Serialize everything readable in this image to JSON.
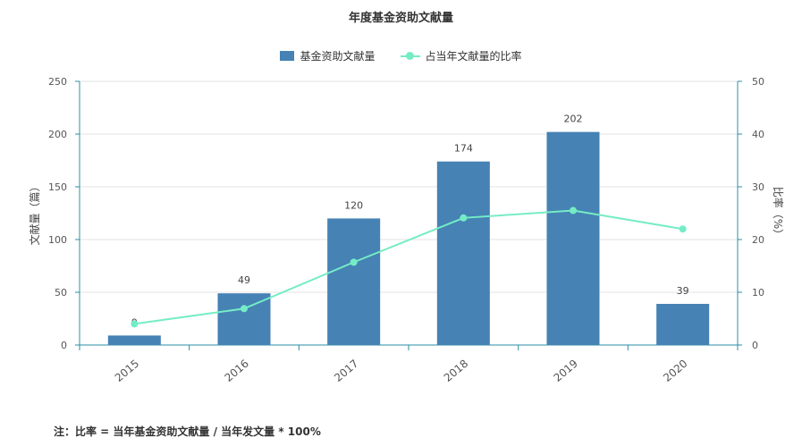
{
  "chart_data": {
    "type": "bar",
    "title": "年度基金资助文献量",
    "categories": [
      "2015",
      "2016",
      "2017",
      "2018",
      "2019",
      "2020"
    ],
    "series": [
      {
        "name": "基金资助文献量",
        "type": "bar",
        "axis": "left",
        "values": [
          9,
          49,
          120,
          174,
          202,
          39
        ]
      },
      {
        "name": "占当年文献量的比率",
        "type": "line",
        "axis": "right",
        "values": [
          4.0,
          6.9,
          15.7,
          24.1,
          25.5,
          22.0
        ]
      }
    ],
    "ylabel": "文献量（篇）",
    "y2label": "比率（%）",
    "ylim": [
      0,
      250
    ],
    "y2lim": [
      0,
      50
    ],
    "yticks": [
      0,
      50,
      100,
      150,
      200,
      250
    ],
    "y2ticks": [
      0,
      10,
      20,
      30,
      40,
      50
    ],
    "grid": true,
    "legend_position": "top-center",
    "colors": {
      "bar": "#4682b4",
      "line": "#74ecc6",
      "axis": "#2b8fa3",
      "grid": "#e3e3e3"
    }
  },
  "footnote": "注：比率 = 当年基金资助文献量 / 当年发文量 * 100%"
}
